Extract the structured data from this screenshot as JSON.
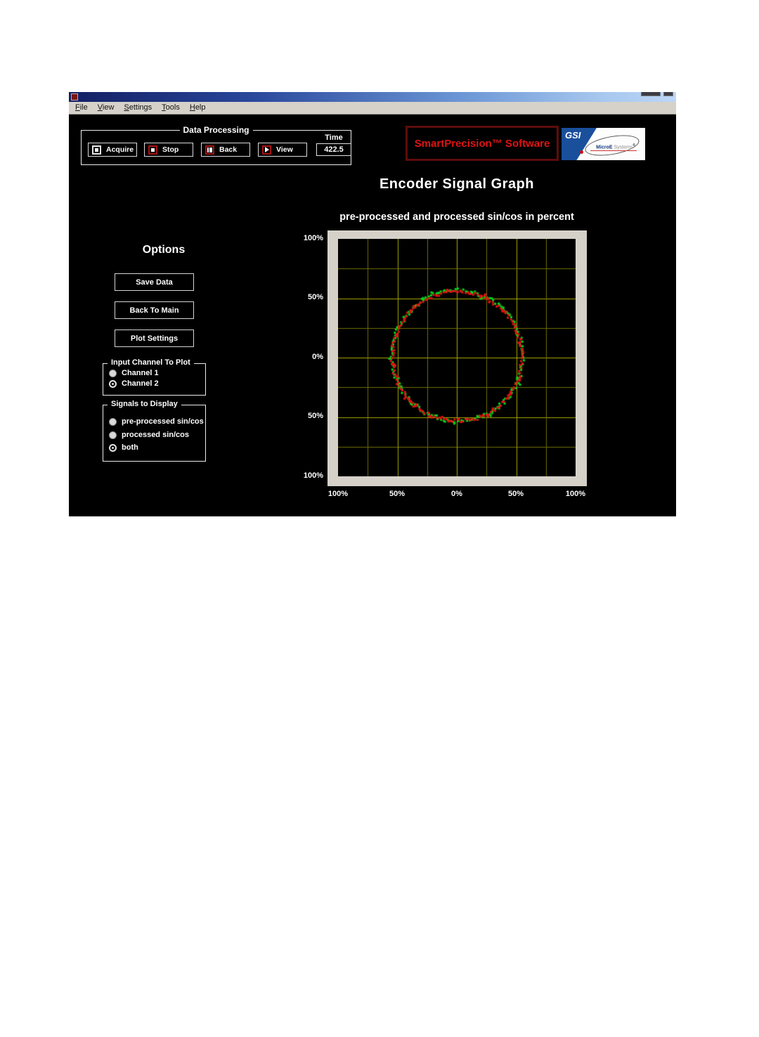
{
  "window": {
    "menu": {
      "items": [
        {
          "label": "File"
        },
        {
          "label": "View"
        },
        {
          "label": "Settings"
        },
        {
          "label": "Tools"
        },
        {
          "label": "Help"
        }
      ]
    },
    "data_processing": {
      "legend": "Data Processing",
      "buttons": [
        {
          "label": "Acquire",
          "icon": "record-square-icon"
        },
        {
          "label": "Stop",
          "icon": "stop-square-icon"
        },
        {
          "label": "Back",
          "icon": "step-back-icon"
        },
        {
          "label": "View",
          "icon": "play-icon"
        }
      ],
      "time": {
        "label": "Time",
        "value": "422.5"
      }
    },
    "branding": {
      "smartprecision_text": "SmartPrecision™ Software",
      "smartprecision_color": "#e01313",
      "gsi_text": "GSI",
      "microe_text": "MicroE",
      "systems_text": "Systems",
      "registered_mark": "®"
    },
    "page_title": "Encoder Signal Graph",
    "options_panel": {
      "heading": "Options",
      "buttons": [
        {
          "label": "Save Data"
        },
        {
          "label": "Back To Main"
        },
        {
          "label": "Plot Settings"
        }
      ],
      "input_channel_group": {
        "legend": "Input Channel To Plot",
        "options": [
          {
            "label": "Channel 1",
            "selected": false
          },
          {
            "label": "Channel 2",
            "selected": true
          }
        ]
      },
      "signals_group": {
        "legend": "Signals to Display",
        "options": [
          {
            "label": "pre-processed sin/cos",
            "selected": false
          },
          {
            "label": "processed sin/cos",
            "selected": false
          },
          {
            "label": "both",
            "selected": true
          }
        ]
      }
    },
    "chart_data": {
      "type": "scatter",
      "title": "pre-processed and processed sin/cos in percent",
      "xlabel": "",
      "ylabel": "",
      "xlim": [
        -100,
        100
      ],
      "ylim": [
        -100,
        100
      ],
      "x_ticks": [
        -100,
        -50,
        0,
        50,
        100
      ],
      "y_ticks": [
        -100,
        -50,
        0,
        50,
        100
      ],
      "x_tick_labels": [
        "100%",
        "50%",
        "0%",
        "50%",
        "100%"
      ],
      "y_tick_labels": [
        "100%",
        "50%",
        "0%",
        "50%",
        "100%"
      ],
      "grid": {
        "on": true,
        "step": 25,
        "major_every": 50,
        "minor_color": "#6f6f00",
        "major_color": "#a9a900",
        "background": "#000000",
        "frame_color": "#d5d1c9"
      },
      "legend_position": "none",
      "series": [
        {
          "name": "pre-processed sin/cos",
          "color": "#00d41c",
          "marker": "square",
          "marker_px": 3,
          "shape": "noisy-circle",
          "center": [
            0.5,
            1.5
          ],
          "radius": 55.0,
          "radius_jitter": 2.0,
          "point_count": 165,
          "seed": 7
        },
        {
          "name": "processed sin/cos",
          "color": "#e01212",
          "marker": "square",
          "marker_px": 3,
          "shape": "noisy-circle",
          "center": [
            0.5,
            1.0
          ],
          "radius": 54.5,
          "radius_jitter": 2.0,
          "point_count": 165,
          "seed": 41
        }
      ]
    }
  }
}
